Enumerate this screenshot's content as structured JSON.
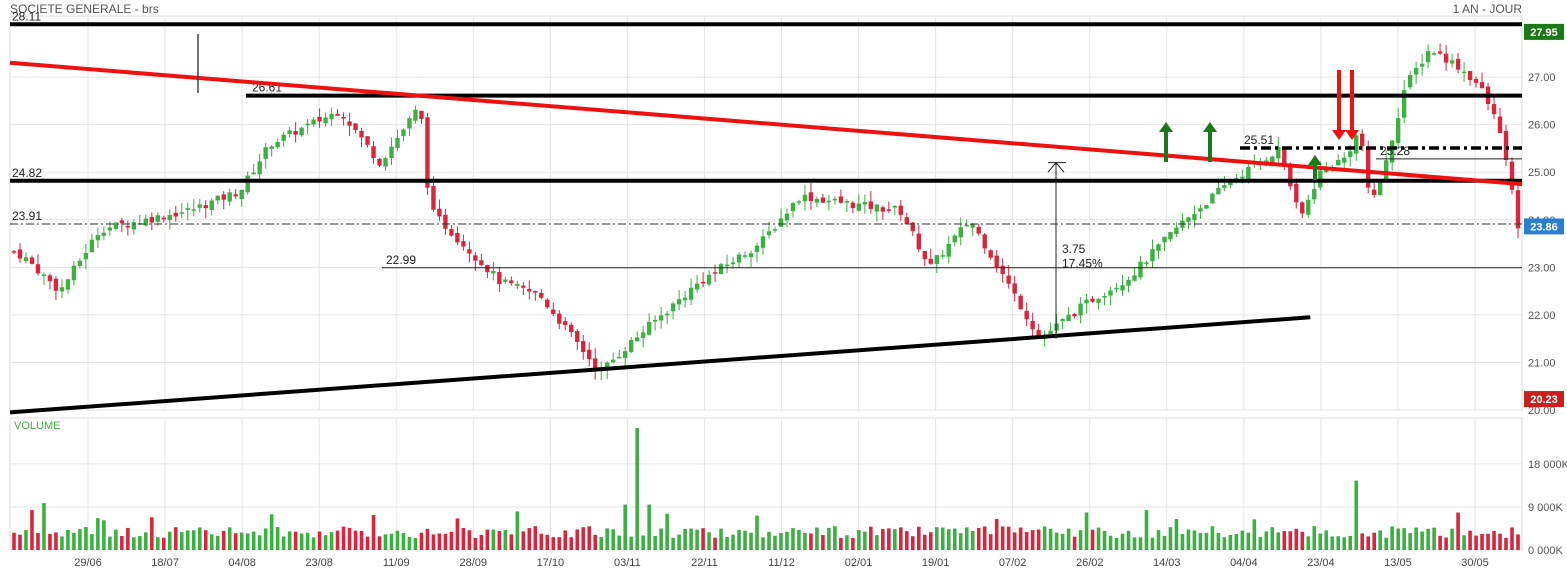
{
  "header": {
    "title": "SOCIETE GENERALE - brs",
    "period": "1 AN - JOUR"
  },
  "volume_panel": {
    "title": "VOLUME"
  },
  "colors": {
    "up": "#3cb043",
    "down": "#d7263d",
    "grid": "#e6e6e6",
    "trend": "#ee1111",
    "level": "#000000"
  },
  "chart_data": [
    {
      "type": "candlestick",
      "ylim": [
        20.0,
        28.2
      ],
      "y_ticks": [
        "27.00",
        "26.00",
        "25.00",
        "24.00",
        "23.00",
        "22.00",
        "21.00",
        "20.00"
      ],
      "x_tick_labels": [
        "29/06",
        "18/07",
        "04/08",
        "23/08",
        "11/09",
        "28/09",
        "17/10",
        "03/11",
        "22/11",
        "11/12",
        "02/01",
        "19/01",
        "07/02",
        "26/02",
        "14/03",
        "04/04",
        "23/04",
        "13/05",
        "30/05"
      ],
      "price_badges": [
        {
          "label": "27.95",
          "value": 27.95,
          "color": "#1a7a1a"
        },
        {
          "label": "23.86",
          "value": 23.86,
          "color": "#2a7fd4"
        },
        {
          "label": "20.23",
          "value": 20.23,
          "color": "#c81e1e"
        }
      ],
      "levels": [
        {
          "label": "28.11",
          "value": 28.11,
          "style": "thick"
        },
        {
          "label": "26.61",
          "value": 26.61,
          "style": "thick"
        },
        {
          "label": "24.82",
          "value": 24.82,
          "style": "thick"
        },
        {
          "label": "25.51",
          "value": 25.51,
          "style": "dashdot"
        },
        {
          "label": "25.28",
          "value": 25.28,
          "style": "thin"
        },
        {
          "label": "23.91",
          "value": 23.91,
          "style": "dashdot-thin"
        },
        {
          "label": "22.99",
          "value": 22.99,
          "style": "thin"
        }
      ],
      "trendlines": [
        {
          "color": "red",
          "start": [
            0,
            27.3
          ],
          "end": [
            1.0,
            24.75
          ]
        },
        {
          "color": "black",
          "start": [
            0,
            19.95
          ],
          "end": [
            0.86,
            21.95
          ]
        }
      ],
      "annotations": [
        {
          "text": "3.75",
          "note": "measured move"
        },
        {
          "text": "17.45%",
          "note": "measured move"
        }
      ],
      "signals": {
        "up_arrows": 3,
        "down_arrows": 2
      }
    },
    {
      "type": "bar",
      "title": "VOLUME",
      "y_ticks": [
        "18 000K",
        "9 000K",
        "0 000K"
      ],
      "ylim": [
        0,
        23000
      ]
    }
  ]
}
